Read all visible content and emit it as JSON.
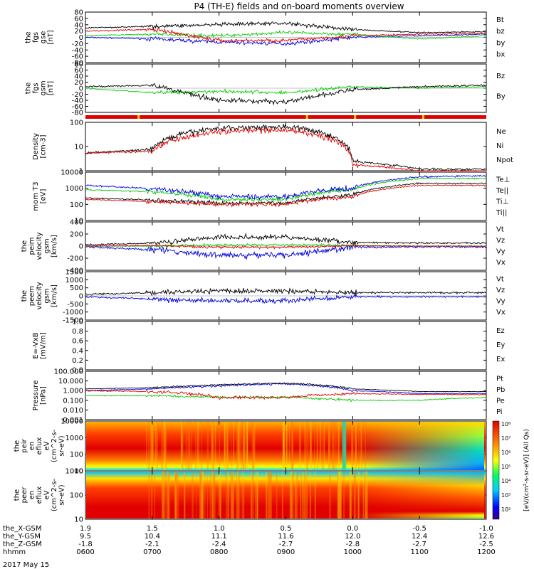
{
  "title": "P4 (TH-E) fields and on-board moments overview",
  "date_label": "2017 May 15",
  "panels": [
    {
      "id": "fgs_gse",
      "ylabel": [
        "the",
        "fgs",
        "gse",
        "[nT]"
      ],
      "ticks": [
        "80",
        "60",
        "40",
        "20",
        "0",
        "-20",
        "-40",
        "-60",
        "-80"
      ],
      "legend": [
        {
          "t": "Bt",
          "c": "#000000"
        },
        {
          "t": "bz",
          "c": "#e00000"
        },
        {
          "t": "by",
          "c": "#00cc00"
        },
        {
          "t": "bx",
          "c": "#0000e0"
        }
      ]
    },
    {
      "id": "fgs_gsm",
      "ylabel": [
        "the",
        "fgs",
        "gsm",
        "[nT]"
      ],
      "ticks": [
        "80",
        "60",
        "40",
        "20",
        "0",
        "-20",
        "-40",
        "-60",
        "-80"
      ],
      "legend": [
        {
          "t": "Bz",
          "c": "#000000"
        },
        {
          "t": "By",
          "c": "#00cc00"
        }
      ]
    },
    {
      "id": "density",
      "ylabel": [
        "Density",
        "[cm-3]"
      ],
      "ticks": [
        "100",
        "10",
        "1"
      ],
      "legend": [
        {
          "t": "Ne",
          "c": "#e00000"
        },
        {
          "t": "Ni",
          "c": "#000000"
        },
        {
          "t": "Npot",
          "c": "#0000e0"
        }
      ]
    },
    {
      "id": "temp",
      "ylabel": [
        "mom T3",
        "[eV]"
      ],
      "ticks": [
        "10000",
        "1000",
        "100",
        "10"
      ],
      "legend": [
        {
          "t": "Te⊥",
          "c": "#e00000"
        },
        {
          "t": "Te||",
          "c": "#000000"
        },
        {
          "t": "Ti⊥",
          "c": "#0000e0"
        },
        {
          "t": "Ti||",
          "c": "#00cc00"
        }
      ]
    },
    {
      "id": "peim_vel",
      "ylabel": [
        "the",
        "peim",
        "velocity",
        "gsm",
        "[km/s]"
      ],
      "ticks": [
        "400",
        "200",
        "0",
        "-200",
        "-400"
      ],
      "legend": [
        {
          "t": "Vt",
          "c": "#000000"
        },
        {
          "t": "Vz",
          "c": "#e00000"
        },
        {
          "t": "Vy",
          "c": "#00cc00"
        },
        {
          "t": "Vx",
          "c": "#0000e0"
        }
      ]
    },
    {
      "id": "peem_vel",
      "ylabel": [
        "the",
        "peem",
        "velocity",
        "gsm",
        "[km/s]"
      ],
      "ticks": [
        "1500",
        "1000",
        "500",
        "0",
        "-500",
        "-1000",
        "-1500"
      ],
      "legend": [
        {
          "t": "Vt",
          "c": "#000000"
        },
        {
          "t": "Vz",
          "c": "#e00000"
        },
        {
          "t": "Vy",
          "c": "#00cc00"
        },
        {
          "t": "Vx",
          "c": "#0000e0"
        }
      ]
    },
    {
      "id": "efield",
      "ylabel": [
        "E=-VxB",
        "[mV/m]"
      ],
      "ticks": [
        "1.0",
        "0.8",
        "0.6",
        "0.4",
        "0.2",
        "0.0"
      ],
      "legend": [
        {
          "t": "Ez",
          "c": "#e00000"
        },
        {
          "t": "Ey",
          "c": "#00cc00"
        },
        {
          "t": "Ex",
          "c": "#0000e0"
        }
      ]
    },
    {
      "id": "pressure",
      "ylabel": [
        "Pressure",
        "[nPa]"
      ],
      "ticks": [
        "100.000",
        "10.000",
        "1.000",
        "0.100",
        "0.010",
        "0.001"
      ],
      "legend": [
        {
          "t": "Pt",
          "c": "#000000"
        },
        {
          "t": "Pb",
          "c": "#e00000"
        },
        {
          "t": "Pe",
          "c": "#00cc00"
        },
        {
          "t": "Pi",
          "c": "#0000e0"
        }
      ]
    },
    {
      "id": "peir_flux",
      "ylabel": [
        "the",
        "peir",
        "en",
        "eflux",
        "eV",
        "(cm^2-s-",
        "sr-eV)"
      ],
      "ticks": [
        "10000",
        "1000",
        "100",
        "10"
      ]
    },
    {
      "id": "peer_flux",
      "ylabel": [
        "the",
        "peer",
        "en",
        "eflux",
        "eV",
        "(cm^2-s-",
        "sr-eV)"
      ],
      "ticks": [
        "1000",
        "100",
        "10"
      ]
    }
  ],
  "colorbar": {
    "ticks": [
      "10⁸",
      "10⁷",
      "10⁶",
      "10⁵",
      "10⁴",
      "10³",
      "10²"
    ],
    "label": "[eV/(cm²-s-sr-eV)] (All Qs)"
  },
  "xaxis": {
    "row_labels": [
      "the_X-GSM",
      "the_Y-GSM",
      "the_Z-GSM",
      "hhmm"
    ],
    "columns": [
      [
        "1.9",
        "9.5",
        "-1.8",
        "0600"
      ],
      [
        "1.5",
        "10.4",
        "-2.1",
        "0700"
      ],
      [
        "1.0",
        "11.1",
        "-2.4",
        "0800"
      ],
      [
        "0.5",
        "11.6",
        "-2.7",
        "0900"
      ],
      [
        "0.0",
        "12.0",
        "-2.8",
        "1000"
      ],
      [
        "-0.5",
        "12.4",
        "-2.7",
        "1100"
      ],
      [
        "-1.0",
        "12.6",
        "-2.5",
        "1200"
      ]
    ]
  },
  "chart_data": [
    {
      "type": "line",
      "title": "P4 (TH-E) fields and on-board moments overview",
      "ylabel": "the fgs gse [nT]",
      "ylim": [
        -80,
        80
      ],
      "x": [
        "0600",
        "0700",
        "0800",
        "0900",
        "1000",
        "1100",
        "1200"
      ],
      "series": [
        {
          "name": "Bt",
          "values": [
            30,
            35,
            40,
            45,
            25,
            15,
            18
          ]
        },
        {
          "name": "bz",
          "values": [
            20,
            25,
            -10,
            -10,
            5,
            10,
            12
          ]
        },
        {
          "name": "by",
          "values": [
            5,
            10,
            5,
            15,
            10,
            -5,
            5
          ]
        },
        {
          "name": "bx",
          "values": [
            0,
            -5,
            -15,
            -20,
            0,
            5,
            10
          ]
        }
      ]
    },
    {
      "type": "line",
      "ylabel": "the fgs gsm [nT]",
      "ylim": [
        -80,
        80
      ],
      "x": [
        "0600",
        "0700",
        "0800",
        "0900",
        "1000",
        "1100",
        "1200"
      ],
      "series": [
        {
          "name": "Bz",
          "values": [
            5,
            10,
            -40,
            -45,
            -5,
            5,
            10
          ]
        },
        {
          "name": "By",
          "values": [
            0,
            -15,
            -10,
            -15,
            5,
            0,
            5
          ]
        }
      ]
    },
    {
      "type": "line",
      "ylabel": "Density [cm-3]",
      "ylim": [
        1,
        300
      ],
      "x": [
        "0600",
        "0700",
        "0800",
        "0900",
        "1000",
        "1100",
        "1200"
      ],
      "series": [
        {
          "name": "Ne",
          "values": [
            8,
            10,
            100,
            120,
            2,
            1,
            1
          ]
        },
        {
          "name": "Ni",
          "values": [
            8,
            12,
            150,
            180,
            3,
            1.2,
            1.2
          ]
        }
      ]
    },
    {
      "type": "line",
      "ylabel": "mom T3 [eV]",
      "ylim": [
        10,
        10000
      ],
      "x": [
        "0600",
        "0700",
        "0800",
        "0900",
        "1000",
        "1100",
        "1200"
      ],
      "series": [
        {
          "name": "Te⊥",
          "values": [
            200,
            150,
            100,
            100,
            300,
            1500,
            1500
          ]
        },
        {
          "name": "Te||",
          "values": [
            250,
            180,
            120,
            120,
            400,
            2000,
            2000
          ]
        },
        {
          "name": "Ti⊥",
          "values": [
            1500,
            900,
            300,
            300,
            1000,
            5000,
            6000
          ]
        },
        {
          "name": "Ti||",
          "values": [
            800,
            600,
            200,
            200,
            800,
            4000,
            4000
          ]
        }
      ]
    },
    {
      "type": "line",
      "ylabel": "the peim velocity gsm [km/s]",
      "ylim": [
        -400,
        400
      ],
      "x": [
        "0600",
        "0700",
        "0800",
        "0900",
        "1000",
        "1100",
        "1200"
      ],
      "series": [
        {
          "name": "Vt",
          "values": [
            20,
            50,
            150,
            150,
            60,
            50,
            50
          ]
        },
        {
          "name": "Vz",
          "values": [
            0,
            10,
            -20,
            -20,
            5,
            0,
            0
          ]
        },
        {
          "name": "Vy",
          "values": [
            0,
            0,
            20,
            20,
            10,
            0,
            0
          ]
        },
        {
          "name": "Vx",
          "values": [
            -10,
            -60,
            -150,
            -150,
            -20,
            -10,
            -10
          ]
        }
      ]
    },
    {
      "type": "line",
      "ylabel": "the peem velocity gsm [km/s]",
      "ylim": [
        -1500,
        1500
      ],
      "x": [
        "0600",
        "0700",
        "0800",
        "0900",
        "1000",
        "1100",
        "1200"
      ],
      "series": [
        {
          "name": "Vt",
          "values": [
            100,
            200,
            300,
            300,
            200,
            200,
            200
          ]
        },
        {
          "name": "Vx",
          "values": [
            -50,
            -200,
            -300,
            -300,
            -50,
            -50,
            -50
          ]
        }
      ]
    },
    {
      "type": "line",
      "ylabel": "E=-VxB [mV/m]",
      "ylim": [
        0,
        1
      ],
      "series": []
    },
    {
      "type": "line",
      "ylabel": "Pressure [nPa]",
      "ylim": [
        0.001,
        100
      ],
      "x": [
        "0600",
        "0700",
        "0800",
        "0900",
        "1000",
        "1100",
        "1200"
      ],
      "series": [
        {
          "name": "Pt",
          "values": [
            1.5,
            2,
            4,
            6,
            1.5,
            0.8,
            0.8
          ]
        },
        {
          "name": "Pb",
          "values": [
            1,
            0.8,
            0.2,
            0.2,
            0.5,
            0.4,
            0.4
          ]
        },
        {
          "name": "Pe",
          "values": [
            0.3,
            0.3,
            0.2,
            0.2,
            0.1,
            0.1,
            0.2
          ]
        },
        {
          "name": "Pi",
          "values": [
            1,
            1.5,
            3,
            5,
            1,
            0.5,
            0.5
          ]
        }
      ]
    },
    {
      "type": "heatmap",
      "ylabel": "the peir en eflux eV/(cm^2-s-sr-eV)",
      "ylim": [
        5,
        20000
      ],
      "scale": "log"
    },
    {
      "type": "heatmap",
      "ylabel": "the peer en eflux eV/(cm^2-s-sr-eV)",
      "ylim": [
        5,
        20000
      ],
      "scale": "log"
    }
  ]
}
